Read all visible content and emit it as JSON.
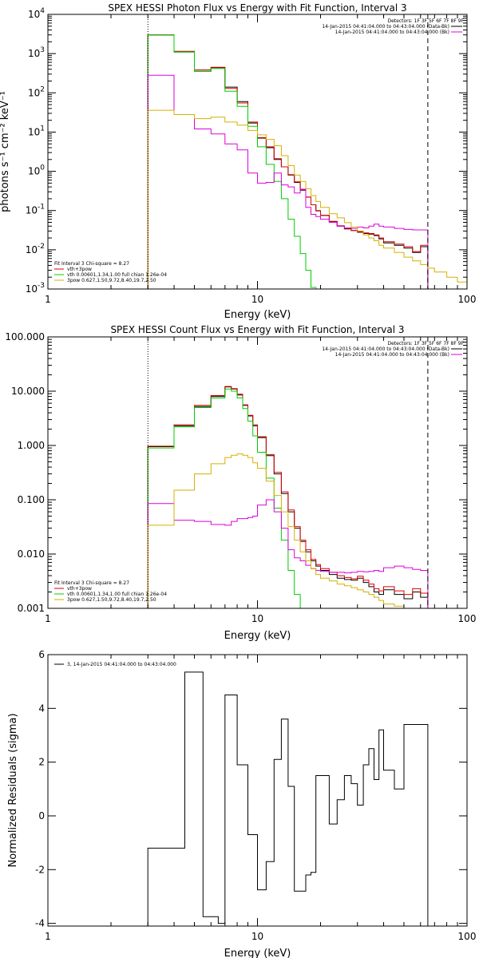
{
  "chart_data": [
    {
      "id": "photon",
      "type": "line",
      "title": "SPEX HESSI Photon Flux vs Energy with Fit Function, Interval 3",
      "xlabel": "Energy (keV)",
      "ylabel": "photons s⁻¹ cm⁻² keV⁻¹",
      "xscale": "log",
      "yscale": "log",
      "xlim": [
        1,
        100
      ],
      "ylim": [
        0.001,
        10000
      ],
      "xticks": [
        {
          "v": 1,
          "label": "1"
        },
        {
          "v": 10,
          "label": "10"
        },
        {
          "v": 100,
          "label": "100"
        }
      ],
      "yticks": [
        {
          "v": 0.001,
          "pre": "10",
          "exp": "-3"
        },
        {
          "v": 0.01,
          "pre": "10",
          "exp": "-2"
        },
        {
          "v": 0.1,
          "pre": "10",
          "exp": "-1"
        },
        {
          "v": 1,
          "pre": "10",
          "exp": "0"
        },
        {
          "v": 10,
          "pre": "10",
          "exp": "1"
        },
        {
          "v": 100,
          "pre": "10",
          "exp": "2"
        },
        {
          "v": 1000,
          "pre": "10",
          "exp": "3"
        },
        {
          "v": 10000,
          "pre": "10",
          "exp": "4"
        }
      ],
      "vlines": [
        {
          "x": 3.0,
          "style": "dotted"
        },
        {
          "x": 65,
          "style": "dashed"
        }
      ],
      "edges": [
        3.0,
        3.5,
        4.0,
        4.5,
        5.0,
        5.5,
        6.0,
        6.5,
        7.0,
        7.5,
        8.0,
        8.5,
        9.0,
        9.5,
        10.0,
        11.0,
        12.0,
        13.0,
        14.0,
        15.0,
        16.0,
        17.0,
        18.0,
        19.0,
        20.0,
        22.0,
        24.0,
        26.0,
        28.0,
        30.0,
        32.0,
        34.0,
        36.0,
        38.0,
        40.0,
        45.0,
        50.0,
        55.0,
        60.0,
        65.0,
        70.0,
        80.0,
        90.0,
        100.0
      ],
      "series": [
        {
          "color": "#000000",
          "x0": 3.0,
          "x1": 65.0,
          "values": [
            3000,
            3000,
            1100,
            1100,
            380,
            380,
            440,
            440,
            140,
            140,
            60,
            60,
            17,
            17,
            7.0,
            4.0,
            2.0,
            1.3,
            0.8,
            0.52,
            0.33,
            0.22,
            0.14,
            0.098,
            0.075,
            0.052,
            0.04,
            0.034,
            0.031,
            0.028,
            0.026,
            0.025,
            0.023,
            0.019,
            0.015,
            0.013,
            0.011,
            0.0085,
            0.012
          ]
        },
        {
          "color": "#dd0000",
          "x0": 3.0,
          "x1": 65.0,
          "values": [
            3000,
            3000,
            1150,
            1150,
            380,
            380,
            450,
            450,
            130,
            130,
            55,
            55,
            18,
            18,
            7.2,
            4.2,
            2.1,
            1.3,
            0.82,
            0.54,
            0.34,
            0.22,
            0.14,
            0.1,
            0.076,
            0.053,
            0.041,
            0.035,
            0.031,
            0.029,
            0.027,
            0.026,
            0.024,
            0.02,
            0.016,
            0.014,
            0.012,
            0.009,
            0.013
          ]
        },
        {
          "color": "#00cc00",
          "x0": 3.0,
          "x1": 20.0,
          "values": [
            3000,
            3000,
            1100,
            1100,
            350,
            350,
            420,
            420,
            110,
            110,
            45,
            45,
            14,
            14,
            4.2,
            1.5,
            0.55,
            0.2,
            0.06,
            0.022,
            0.008,
            0.003,
            0.0011,
            0.0004
          ]
        },
        {
          "color": "#dd00dd",
          "x0": 3.0,
          "x1": 65.0,
          "values": [
            280,
            280,
            28,
            28,
            12,
            12,
            9,
            9,
            5,
            5,
            3.5,
            3.5,
            0.9,
            0.9,
            0.5,
            0.52,
            0.9,
            0.45,
            0.4,
            0.28,
            0.35,
            0.12,
            0.08,
            0.07,
            0.06,
            0.05,
            0.04,
            0.036,
            0.035,
            0.038,
            0.036,
            0.04,
            0.045,
            0.04,
            0.038,
            0.035,
            0.033,
            0.032,
            0.032
          ]
        },
        {
          "color": "#d6b100",
          "x0": 3.0,
          "x1": 100.0,
          "values": [
            36,
            36,
            28,
            28,
            22,
            22,
            24,
            24,
            18,
            18,
            15,
            15,
            11,
            11,
            8.5,
            6.5,
            4.5,
            2.5,
            1.4,
            0.8,
            0.55,
            0.36,
            0.24,
            0.17,
            0.12,
            0.083,
            0.065,
            0.049,
            0.038,
            0.03,
            0.024,
            0.02,
            0.017,
            0.013,
            0.011,
            0.0085,
            0.0065,
            0.0052,
            0.0042,
            0.0034,
            0.0027,
            0.002,
            0.0015
          ]
        }
      ],
      "legend_right": [
        {
          "text": "Detectors: 1F 3F 5F 6F 7F 8F 9F",
          "color": "",
          "line": false
        },
        {
          "text": "14-Jan-2015 04:41:04.000 to 04:43:04.000 (Data-Bk)",
          "color": "#000000",
          "line": true
        },
        {
          "text": "14-Jan-2015 04:41:04.000 to 04:43:04.000 (Bk)",
          "color": "#dd00dd",
          "line": true
        }
      ],
      "legend_left": [
        {
          "text": "Fit Interval 3   Chi-square = 8.27",
          "color": "",
          "line": false
        },
        {
          "text": "vth+3pow",
          "color": "#dd0000",
          "line": true
        },
        {
          "text": "vth 0.00601,1.34,1.00  full chian 1.26e-04",
          "color": "#00cc00",
          "line": true
        },
        {
          "text": "3pow 0.627,1.50,9.72,8.40,19.7,2.50",
          "color": "#d6b100",
          "line": true
        }
      ]
    },
    {
      "id": "count",
      "type": "line",
      "title": "SPEX HESSI Count Flux vs Energy with Fit Function, Interval 3",
      "xlabel": "Energy (keV)",
      "ylabel": "",
      "xscale": "log",
      "yscale": "log",
      "xlim": [
        1,
        100
      ],
      "ylim": [
        0.001,
        100
      ],
      "xticks": [
        {
          "v": 1,
          "label": "1"
        },
        {
          "v": 10,
          "label": "10"
        },
        {
          "v": 100,
          "label": "100"
        }
      ],
      "yticks": [
        {
          "v": 0.001,
          "label": "0.001"
        },
        {
          "v": 0.01,
          "label": "0.010"
        },
        {
          "v": 0.1,
          "label": "0.100"
        },
        {
          "v": 1,
          "label": "1.000"
        },
        {
          "v": 10,
          "label": "10.000"
        },
        {
          "v": 100,
          "label": "100.000"
        }
      ],
      "vlines": [
        {
          "x": 3.0,
          "style": "dotted"
        },
        {
          "x": 65,
          "style": "dashed"
        }
      ],
      "edges": [
        3.0,
        3.5,
        4.0,
        4.5,
        5.0,
        5.5,
        6.0,
        6.5,
        7.0,
        7.5,
        8.0,
        8.5,
        9.0,
        9.5,
        10.0,
        11.0,
        12.0,
        13.0,
        14.0,
        15.0,
        16.0,
        17.0,
        18.0,
        19.0,
        20.0,
        22.0,
        24.0,
        26.0,
        28.0,
        30.0,
        32.0,
        34.0,
        36.0,
        38.0,
        40.0,
        45.0,
        50.0,
        55.0,
        60.0,
        65.0
      ],
      "series": [
        {
          "color": "#000000",
          "x0": 3.0,
          "x1": 65.0,
          "values": [
            0.95,
            0.95,
            2.3,
            2.3,
            5.2,
            5.2,
            8.0,
            8.0,
            12.0,
            11.0,
            8.5,
            5.5,
            3.5,
            2.3,
            1.4,
            0.65,
            0.3,
            0.13,
            0.06,
            0.03,
            0.017,
            0.011,
            0.0075,
            0.006,
            0.005,
            0.0042,
            0.0036,
            0.0034,
            0.0033,
            0.0036,
            0.003,
            0.0025,
            0.002,
            0.0018,
            0.0022,
            0.0018,
            0.0015,
            0.002,
            0.0016
          ]
        },
        {
          "color": "#dd0000",
          "x0": 3.0,
          "x1": 65.0,
          "values": [
            0.97,
            0.97,
            2.4,
            2.4,
            5.5,
            5.5,
            8.3,
            8.3,
            12.2,
            11.2,
            8.8,
            5.6,
            3.6,
            2.4,
            1.45,
            0.68,
            0.32,
            0.14,
            0.065,
            0.032,
            0.018,
            0.012,
            0.008,
            0.0064,
            0.0054,
            0.0046,
            0.004,
            0.0037,
            0.0035,
            0.0039,
            0.0033,
            0.0028,
            0.0023,
            0.0021,
            0.0025,
            0.0021,
            0.0018,
            0.0023,
            0.0019
          ]
        },
        {
          "color": "#00cc00",
          "x0": 3.0,
          "x1": 18.0,
          "values": [
            0.9,
            0.9,
            2.2,
            2.2,
            5.0,
            5.0,
            7.5,
            7.5,
            11.0,
            10.0,
            7.5,
            4.8,
            2.8,
            1.5,
            0.75,
            0.25,
            0.07,
            0.018,
            0.005,
            0.0018,
            0.0007
          ]
        },
        {
          "color": "#dd00dd",
          "x0": 3.0,
          "x1": 65.0,
          "values": [
            0.085,
            0.085,
            0.042,
            0.042,
            0.04,
            0.04,
            0.035,
            0.035,
            0.034,
            0.04,
            0.045,
            0.045,
            0.047,
            0.05,
            0.08,
            0.1,
            0.06,
            0.03,
            0.012,
            0.0085,
            0.0075,
            0.0062,
            0.0054,
            0.005,
            0.0048,
            0.0046,
            0.0046,
            0.0045,
            0.0046,
            0.0048,
            0.0047,
            0.0048,
            0.005,
            0.0048,
            0.0056,
            0.006,
            0.0056,
            0.0052,
            0.005
          ]
        },
        {
          "color": "#d6b100",
          "x0": 3.0,
          "x1": 60.0,
          "values": [
            0.034,
            0.034,
            0.15,
            0.15,
            0.3,
            0.3,
            0.46,
            0.46,
            0.6,
            0.66,
            0.7,
            0.66,
            0.6,
            0.48,
            0.38,
            0.22,
            0.12,
            0.06,
            0.032,
            0.018,
            0.011,
            0.0075,
            0.0054,
            0.0042,
            0.0036,
            0.0032,
            0.0028,
            0.0026,
            0.0024,
            0.0022,
            0.002,
            0.0018,
            0.0016,
            0.0014,
            0.0012,
            0.0011,
            0.001,
            0.0009
          ]
        }
      ],
      "legend_right": [
        {
          "text": "Detectors: 1F 3F 5F 6F 7F 8F 9F",
          "color": "",
          "line": false
        },
        {
          "text": "14-Jan-2015 04:41:04.000 to 04:43:04.000 (Data-Bk)",
          "color": "#000000",
          "line": true
        },
        {
          "text": "14-Jan-2015 04:41:04.000 to 04:43:04.000 (Bk)",
          "color": "#dd00dd",
          "line": true
        }
      ],
      "legend_left": [
        {
          "text": "Fit Interval 3   Chi-square = 8.27",
          "color": "",
          "line": false
        },
        {
          "text": "vth+3pow",
          "color": "#dd0000",
          "line": true
        },
        {
          "text": "vth 0.00601,1.34,1.00  full chian 1.26e-04",
          "color": "#00cc00",
          "line": true
        },
        {
          "text": "3pow 0.627,1.50,9.72,8.40,19.7,2.50",
          "color": "#d6b100",
          "line": true
        }
      ]
    },
    {
      "id": "resid",
      "type": "line",
      "title": "",
      "xlabel": "Energy (keV)",
      "ylabel": "Normalized Residuals (sigma)",
      "xscale": "log",
      "yscale": "linear",
      "xlim": [
        1,
        100
      ],
      "ylim": [
        -4.1,
        6
      ],
      "xticks": [
        {
          "v": 1,
          "label": "1"
        },
        {
          "v": 10,
          "label": "10"
        },
        {
          "v": 100,
          "label": "100"
        }
      ],
      "yticks": [
        {
          "v": -4,
          "label": "-4"
        },
        {
          "v": -2,
          "label": "-2"
        },
        {
          "v": 0,
          "label": "0"
        },
        {
          "v": 2,
          "label": "2"
        },
        {
          "v": 4,
          "label": "4"
        },
        {
          "v": 6,
          "label": "6"
        }
      ],
      "vlines": [],
      "edges": [
        3.0,
        3.5,
        4.0,
        4.5,
        5.0,
        5.5,
        6.0,
        6.5,
        7.0,
        7.5,
        8.0,
        8.5,
        9.0,
        9.5,
        10.0,
        11.0,
        12.0,
        13.0,
        14.0,
        15.0,
        16.0,
        17.0,
        18.0,
        19.0,
        20.0,
        22.0,
        24.0,
        26.0,
        28.0,
        30.0,
        32.0,
        34.0,
        36.0,
        38.0,
        40.0,
        45.0,
        50.0,
        55.0,
        60.0,
        65.0
      ],
      "series": [
        {
          "color": "#000000",
          "x0": 3.0,
          "x1": 65.0,
          "values": [
            -1.2,
            -1.2,
            -1.2,
            5.35,
            5.35,
            -3.75,
            -3.75,
            -4.0,
            4.5,
            4.5,
            1.9,
            1.9,
            -0.7,
            -0.7,
            -2.75,
            -1.7,
            2.1,
            3.6,
            1.1,
            -2.8,
            -2.8,
            -2.2,
            -2.1,
            1.5,
            1.5,
            -0.3,
            0.6,
            1.5,
            1.2,
            0.4,
            1.9,
            2.5,
            1.35,
            3.2,
            1.7,
            1.0,
            3.4,
            3.4,
            3.4
          ]
        }
      ],
      "legend_left": [
        {
          "text": "3, 14-Jan-2015 04:41:04.000 to 04:43:04.000",
          "color": "#000000",
          "line": true
        }
      ],
      "legend_right": []
    }
  ]
}
